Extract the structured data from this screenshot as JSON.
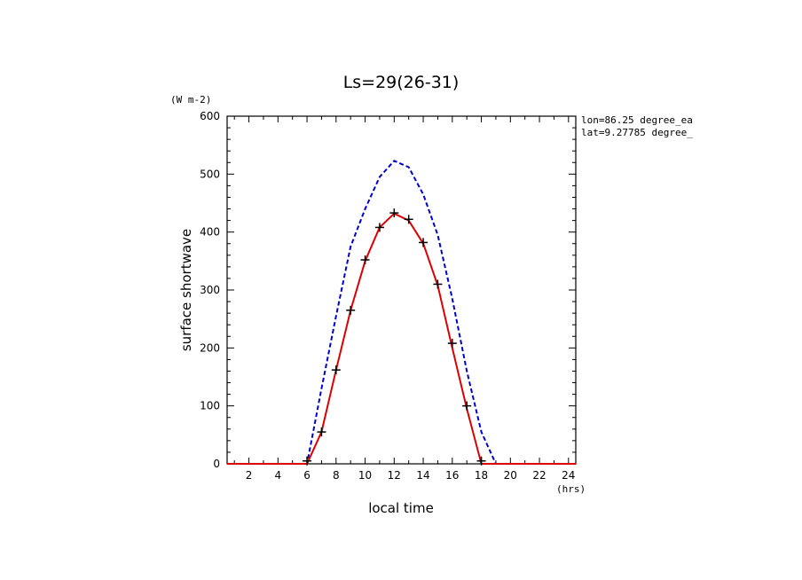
{
  "chart_data": {
    "type": "line",
    "title": "Ls=29(26-31)",
    "xlabel": "local time",
    "xunit": "(hrs)",
    "ylabel": "surface shortwave",
    "yunit": "(W m-2)",
    "annotation_lines": [
      "lon=86.25 degree_ea",
      "lat=9.27785 degree_"
    ],
    "xlim": [
      0.5,
      24.5
    ],
    "ylim": [
      0,
      600
    ],
    "xticks": [
      2,
      4,
      6,
      8,
      10,
      12,
      14,
      16,
      18,
      20,
      22,
      24
    ],
    "yticks": [
      0,
      100,
      200,
      300,
      400,
      500,
      600
    ],
    "grid": false,
    "series": [
      {
        "style": "dashed",
        "color": "#0000cc",
        "x": [
          0.5,
          1,
          2,
          3,
          4,
          5,
          6,
          7,
          8,
          9,
          10,
          11,
          12,
          13,
          14,
          15,
          16,
          17,
          18,
          19,
          20,
          21,
          22,
          23,
          24,
          24.5
        ],
        "y": [
          0,
          0,
          0,
          0,
          0,
          0,
          0,
          130,
          255,
          375,
          440,
          495,
          523,
          512,
          465,
          395,
          285,
          160,
          55,
          0,
          0,
          0,
          0,
          0,
          0,
          0
        ]
      },
      {
        "style": "solid",
        "color": "#dd0000",
        "x": [
          0.5,
          1,
          2,
          3,
          4,
          5,
          6,
          7,
          8,
          9,
          10,
          11,
          12,
          13,
          14,
          15,
          16,
          17,
          18,
          19,
          20,
          21,
          22,
          23,
          24,
          24.5
        ],
        "y": [
          0,
          0,
          0,
          0,
          0,
          0,
          0,
          55,
          162,
          265,
          350,
          408,
          432,
          420,
          380,
          308,
          200,
          95,
          0,
          0,
          0,
          0,
          0,
          0,
          0,
          0
        ]
      },
      {
        "style": "markers",
        "marker": "plus",
        "color": "#000000",
        "x": [
          6,
          7,
          8,
          9,
          10,
          11,
          12,
          13,
          14,
          15,
          16,
          17,
          18
        ],
        "y": [
          5,
          55,
          162,
          265,
          352,
          408,
          433,
          422,
          382,
          310,
          208,
          100,
          5
        ]
      }
    ]
  }
}
